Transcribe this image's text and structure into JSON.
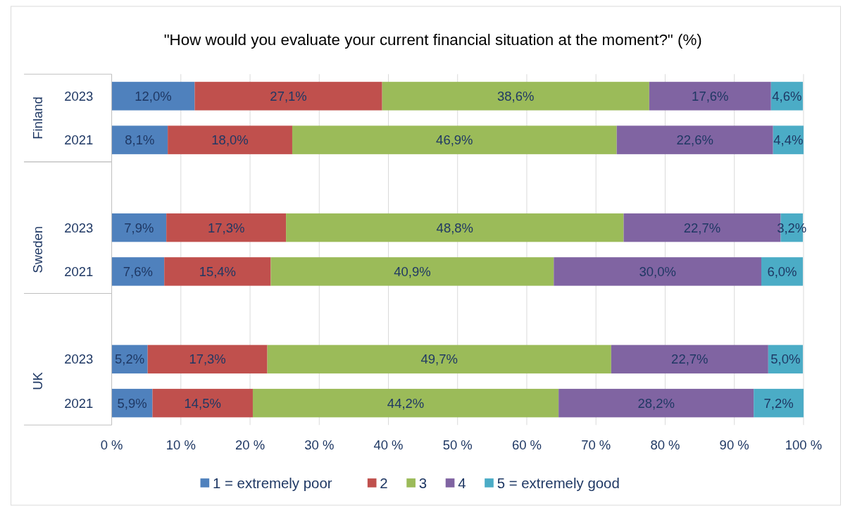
{
  "chart_data": {
    "type": "bar",
    "orientation": "horizontal",
    "stacked": true,
    "title": "\"How would you evaluate your current financial situation at the moment?\" (%)",
    "categories": [
      "2023",
      "2021",
      null,
      "2023",
      "2021",
      null,
      "2023",
      "2021"
    ],
    "annotations": [
      "Finland",
      "Sweden",
      "UK"
    ],
    "series": [
      {
        "name": "1 = extremely poor",
        "color": "#4f81bd",
        "values": [
          12.0,
          8.1,
          null,
          7.9,
          7.6,
          null,
          5.2,
          5.9
        ],
        "value_labels": [
          "12,0%",
          "8,1%",
          null,
          "7,9%",
          "7,6%",
          null,
          "5,2%",
          "5,9%"
        ]
      },
      {
        "name": "2",
        "color": "#c0504d",
        "values": [
          27.1,
          18.0,
          null,
          17.3,
          15.4,
          null,
          17.3,
          14.5
        ],
        "value_labels": [
          "27,1%",
          "18,0%",
          null,
          "17,3%",
          "15,4%",
          null,
          "17,3%",
          "14,5%"
        ]
      },
      {
        "name": "3",
        "color": "#9bbb59",
        "values": [
          38.6,
          46.9,
          null,
          48.8,
          40.9,
          null,
          49.7,
          44.2
        ],
        "value_labels": [
          "38,6%",
          "46,9%",
          null,
          "48,8%",
          "40,9%",
          null,
          "49,7%",
          "44,2%"
        ]
      },
      {
        "name": "4",
        "color": "#8064a2",
        "values": [
          17.6,
          22.6,
          null,
          22.7,
          30.0,
          null,
          22.7,
          28.2
        ],
        "value_labels": [
          "17,6%",
          "22,6%",
          null,
          "22,7%",
          "30,0%",
          null,
          "22,7%",
          "28,2%"
        ]
      },
      {
        "name": "5 = extremely good",
        "color": "#4bacc6",
        "values": [
          4.6,
          4.4,
          null,
          3.2,
          6.0,
          null,
          5.0,
          7.2
        ],
        "value_labels": [
          "4,6%",
          "4,4%",
          null,
          "3,2%",
          "6,0%",
          null,
          "5,0%",
          "7,2%"
        ]
      }
    ],
    "xlim": [
      0,
      100
    ],
    "xticks": [
      {
        "value": 0,
        "label": "0 %"
      },
      {
        "value": 10,
        "label": "10 %"
      },
      {
        "value": 20,
        "label": "20 %"
      },
      {
        "value": 30,
        "label": "30 %"
      },
      {
        "value": 40,
        "label": "40 %"
      },
      {
        "value": 50,
        "label": "50 %"
      },
      {
        "value": 60,
        "label": "60 %"
      },
      {
        "value": 70,
        "label": "70 %"
      },
      {
        "value": 80,
        "label": "80 %"
      },
      {
        "value": 90,
        "label": "90 %"
      },
      {
        "value": 100,
        "label": "100 %"
      }
    ],
    "grid": "x",
    "legend": "bottom"
  }
}
